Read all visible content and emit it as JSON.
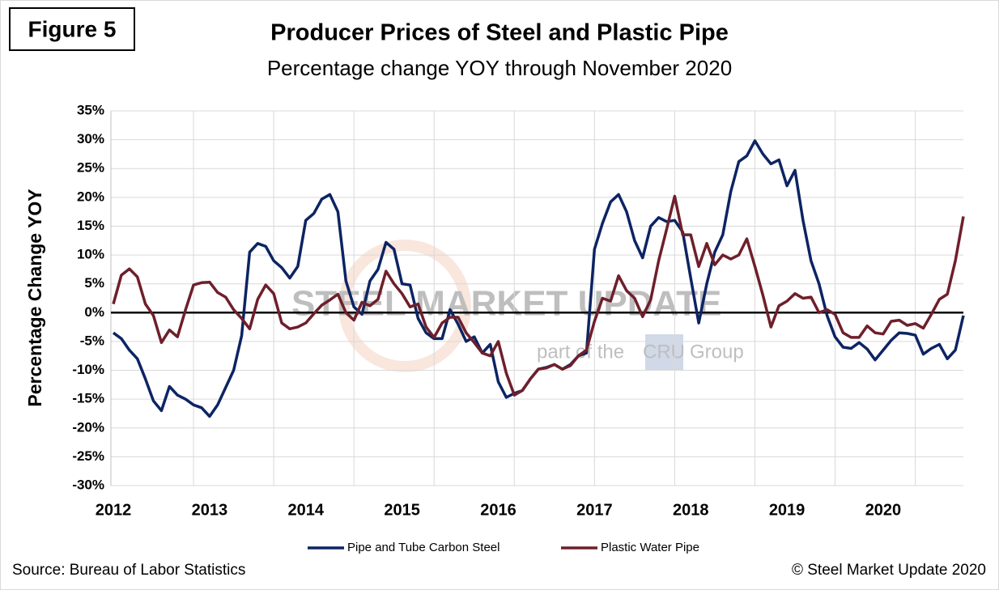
{
  "chart_data": {
    "type": "line",
    "figure_label": "Figure 5",
    "title": "Producer Prices of Steel and Plastic Pipe",
    "subtitle": "Percentage change YOY through November 2020",
    "y_axis_label": "Percentage Change YOY",
    "source": "Source: Bureau of Labor Statistics",
    "copyright": "© Steel Market Update 2020",
    "watermark": {
      "name": "STEEL MARKET UPDATE",
      "tagline": "part of the",
      "brand": "CRU",
      "tagline_end": "Group"
    },
    "categories": [
      "2012",
      null,
      null,
      null,
      null,
      null,
      null,
      null,
      null,
      null,
      null,
      null,
      "2013",
      null,
      null,
      null,
      null,
      null,
      null,
      null,
      null,
      null,
      null,
      null,
      "2014",
      null,
      null,
      null,
      null,
      null,
      null,
      null,
      null,
      null,
      null,
      null,
      "2015",
      null,
      null,
      null,
      null,
      null,
      null,
      null,
      null,
      null,
      null,
      null,
      "2016",
      null,
      null,
      null,
      null,
      null,
      null,
      null,
      null,
      null,
      null,
      null,
      "2017",
      null,
      null,
      null,
      null,
      null,
      null,
      null,
      null,
      null,
      null,
      null,
      "2018",
      null,
      null,
      null,
      null,
      null,
      null,
      null,
      null,
      null,
      null,
      null,
      "2019",
      null,
      null,
      null,
      null,
      null,
      null,
      null,
      null,
      null,
      null,
      null,
      "2020",
      null,
      null,
      null,
      null,
      null,
      null,
      null,
      null,
      null,
      null
    ],
    "series": [
      {
        "name": "Pipe and Tube Carbon Steel",
        "color": "#0d2463",
        "values": [
          -3.5,
          -4.5,
          -6.5,
          -8,
          -11.5,
          -15.3,
          -17,
          -12.8,
          -14.3,
          -15,
          -16,
          -16.5,
          -18,
          -16,
          -13,
          -10,
          -4,
          10.5,
          12,
          11.5,
          9,
          7.8,
          6,
          8,
          16,
          17.2,
          19.7,
          20.5,
          17.5,
          5.5,
          1,
          -0.3,
          5.5,
          7.5,
          12.2,
          11,
          5,
          4.8,
          -1,
          -3.5,
          -4.5,
          -4.5,
          0.5,
          -2,
          -5,
          -4.2,
          -7,
          -5.5,
          -12,
          -14.7,
          -14,
          -13.5,
          -11.5,
          -9.8,
          -9.5,
          -9,
          -9.8,
          -9,
          -7.5,
          -7,
          11,
          15.5,
          19.2,
          20.5,
          17.5,
          12.5,
          9.5,
          15,
          16.5,
          15.8,
          16,
          14,
          6,
          -1.8,
          5,
          10.5,
          13.5,
          21,
          26.2,
          27.2,
          29.8,
          27.5,
          25.8,
          26.5,
          22,
          24.7,
          16,
          9,
          5,
          -0.5,
          -4.2,
          -6,
          -6.2,
          -5.2,
          -6.3,
          -8.2,
          -6.5,
          -4.8,
          -3.5,
          -3.6,
          -3.9,
          -7.2,
          -6.2,
          -5.5,
          -8,
          -6.5,
          -0.5
        ]
      },
      {
        "name": "Plastic Water Pipe",
        "color": "#6e1f2b",
        "values": [
          1.5,
          6.5,
          7.6,
          6.2,
          1.5,
          -0.5,
          -5.2,
          -3,
          -4.2,
          0.5,
          4.8,
          5.2,
          5.3,
          3.5,
          2.7,
          0.5,
          -1,
          -2.8,
          2.3,
          4.8,
          3.3,
          -1.8,
          -2.8,
          -2.5,
          -1.8,
          -0.2,
          1.3,
          2.2,
          3.2,
          0,
          -1.3,
          1.8,
          1.2,
          2.3,
          7.2,
          5,
          3.3,
          1,
          1.5,
          -2.5,
          -4.3,
          -1.8,
          -0.8,
          -0.8,
          -3.5,
          -5.2,
          -7,
          -7.5,
          -5,
          -10.5,
          -14.3,
          -13.5,
          -11.5,
          -9.8,
          -9.6,
          -9,
          -9.8,
          -9.2,
          -7.5,
          -6.5,
          -1.5,
          2.5,
          2,
          6.4,
          3.8,
          2.5,
          -0.7,
          2.2,
          9,
          14.5,
          20.2,
          13.5,
          13.5,
          8,
          12,
          8.3,
          10,
          9.3,
          10,
          12.8,
          8,
          3,
          -2.5,
          1.2,
          2,
          3.3,
          2.5,
          2.7,
          0,
          0.5,
          -0.3,
          -3.5,
          -4.3,
          -4.3,
          -2.3,
          -3.5,
          -3.7,
          -1.5,
          -1.3,
          -2.2,
          -1.9,
          -2.7,
          -0.3,
          2.3,
          3.2,
          9,
          16.7
        ]
      }
    ],
    "ylim": [
      -30,
      35
    ],
    "yticks": [
      {
        "value": -30,
        "label": "-30%"
      },
      {
        "value": -25,
        "label": "-25%"
      },
      {
        "value": -20,
        "label": "-20%"
      },
      {
        "value": -15,
        "label": "-15%"
      },
      {
        "value": -10,
        "label": "-10%"
      },
      {
        "value": -5,
        "label": "-5%"
      },
      {
        "value": 0,
        "label": "0%"
      },
      {
        "value": 5,
        "label": "5%"
      },
      {
        "value": 10,
        "label": "10%"
      },
      {
        "value": 15,
        "label": "15%"
      },
      {
        "value": 20,
        "label": "20%"
      },
      {
        "value": 25,
        "label": "25%"
      },
      {
        "value": 30,
        "label": "30%"
      },
      {
        "value": 35,
        "label": "35%"
      }
    ],
    "grid": true,
    "zero_line": true,
    "legend": "bottom"
  }
}
